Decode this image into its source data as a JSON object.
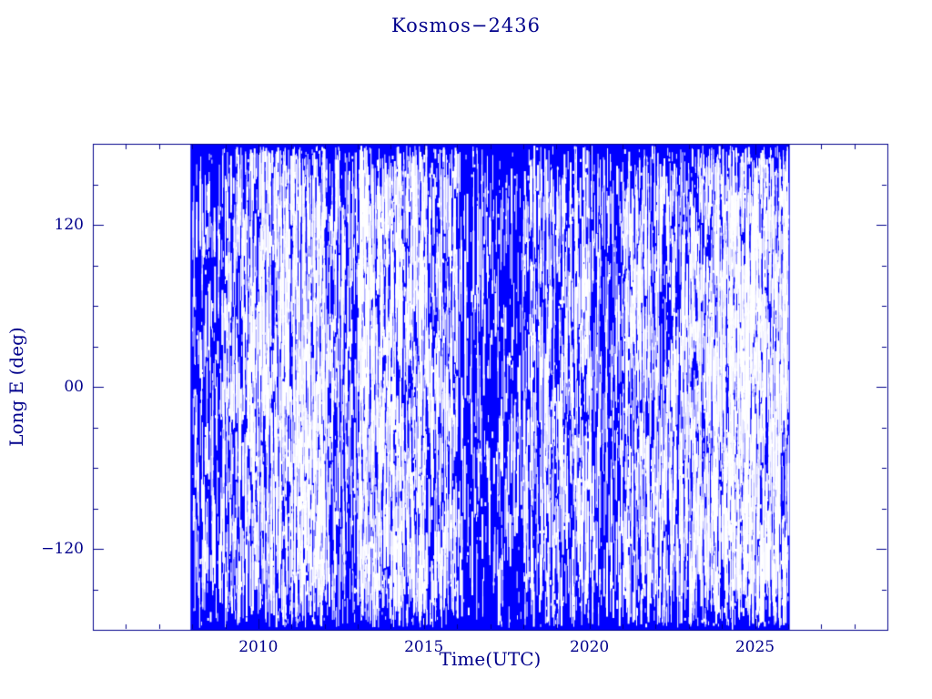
{
  "chart_data": {
    "type": "scatter",
    "title": "Kosmos−2436",
    "xlabel": "Time(UTC)",
    "ylabel": "Long E (deg)",
    "xlim": [
      2005,
      2029
    ],
    "ylim": [
      -180,
      180
    ],
    "x_ticks": [
      {
        "value": 2010,
        "label": "2010"
      },
      {
        "value": 2015,
        "label": "2015"
      },
      {
        "value": 2020,
        "label": "2020"
      },
      {
        "value": 2025,
        "label": "2025"
      }
    ],
    "y_ticks": [
      {
        "value": 120,
        "label": "120"
      },
      {
        "value": 0,
        "label": "00"
      },
      {
        "value": -120,
        "label": "−120"
      }
    ],
    "x_minor_step": 1,
    "y_minor_step": 30,
    "grid": false,
    "legend": "none",
    "colors": {
      "data": "#0000ff",
      "axis": "#00008b",
      "text": "#00008b",
      "background": "#ffffff"
    },
    "series": [
      {
        "name": "sub-satellite-longitude-history",
        "marker": "vertical-dash",
        "color": "#0000ff",
        "x_start": 2007.95,
        "x_end": 2026.05,
        "y_min": -180,
        "y_max": 180,
        "description": "Dense blue vertical dashes covering the full −180..180 deg longitude range continuously from early 2008 to early 2026; interleaved thin white vertical gaps whose abundance varies by year",
        "white_gap_density_by_year": [
          {
            "year": 2008,
            "density": 0.22
          },
          {
            "year": 2009,
            "density": 0.4
          },
          {
            "year": 2010,
            "density": 0.5
          },
          {
            "year": 2011,
            "density": 0.62
          },
          {
            "year": 2012,
            "density": 0.3
          },
          {
            "year": 2013,
            "density": 0.62
          },
          {
            "year": 2014,
            "density": 0.55
          },
          {
            "year": 2015,
            "density": 0.38
          },
          {
            "year": 2016,
            "density": 0.15
          },
          {
            "year": 2017,
            "density": 0.15
          },
          {
            "year": 2018,
            "density": 0.35
          },
          {
            "year": 2019,
            "density": 0.38
          },
          {
            "year": 2020,
            "density": 0.22
          },
          {
            "year": 2021,
            "density": 0.42
          },
          {
            "year": 2022,
            "density": 0.38
          },
          {
            "year": 2023,
            "density": 0.55
          },
          {
            "year": 2024,
            "density": 0.75
          },
          {
            "year": 2025,
            "density": 0.6
          }
        ],
        "tall_white_gaps": [
          2011.68,
          2013.05,
          2023.9,
          2024.3,
          2024.7
        ]
      }
    ]
  }
}
